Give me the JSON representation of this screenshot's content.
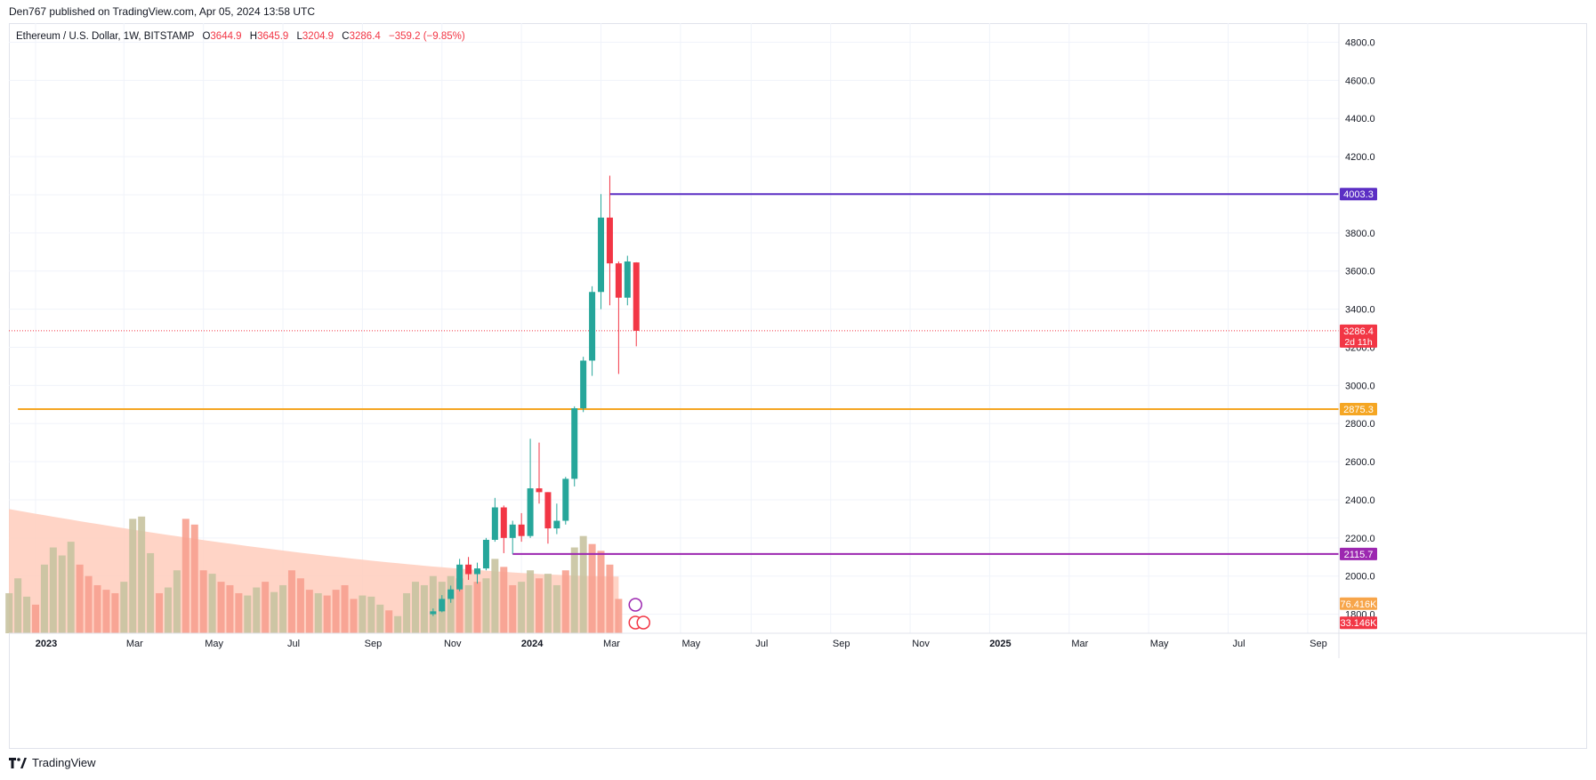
{
  "header": {
    "published": "Den767 published on TradingView.com, Apr 05, 2024 13:58 UTC"
  },
  "legend": {
    "symbol": "Ethereum / U.S. Dollar, 1W, BITSTAMP",
    "o_label": "O",
    "o_value": "3644.9",
    "h_label": "H",
    "h_value": "3645.9",
    "l_label": "L",
    "l_value": "3204.9",
    "c_label": "C",
    "c_value": "3286.4",
    "change": "−359.2 (−9.85%)"
  },
  "footer": {
    "brand": "TradingView"
  },
  "colors": {
    "up": "#26a69a",
    "down": "#f23645",
    "support": "#ff9800",
    "resistance": "#7e22ce",
    "grid": "#f0f3fa",
    "volume_ma": "#ffccbc",
    "volume_up": "#c8c3a0",
    "volume_down": "#f7a08f"
  },
  "chart_data": {
    "type": "candlestick",
    "y_axis": {
      "min": 1800,
      "max": 4800,
      "ticks": [
        "4800.0",
        "4600.0",
        "4400.0",
        "4200.0",
        "4000.0",
        "3800.0",
        "3600.0",
        "3400.0",
        "3200.0",
        "3000.0",
        "2800.0",
        "2600.0",
        "2400.0",
        "2200.0",
        "2000.0",
        "1800.0"
      ]
    },
    "x_axis_labels": [
      {
        "label": "2023",
        "week": 0,
        "bold": true
      },
      {
        "label": "Mar",
        "week": 10
      },
      {
        "label": "May",
        "week": 19
      },
      {
        "label": "Jul",
        "week": 28
      },
      {
        "label": "Sep",
        "week": 37
      },
      {
        "label": "Nov",
        "week": 46
      },
      {
        "label": "2024",
        "week": 55,
        "bold": true
      },
      {
        "label": "Mar",
        "week": 64
      },
      {
        "label": "May",
        "week": 73
      },
      {
        "label": "Jul",
        "week": 81
      },
      {
        "label": "Sep",
        "week": 90
      },
      {
        "label": "Nov",
        "week": 99
      },
      {
        "label": "2025",
        "week": 108,
        "bold": true
      },
      {
        "label": "Mar",
        "week": 117
      },
      {
        "label": "May",
        "week": 126
      },
      {
        "label": "Jul",
        "week": 135
      },
      {
        "label": "Sep",
        "week": 144
      }
    ],
    "candles_start_week": 45,
    "candles": [
      {
        "o": 1800,
        "h": 1830,
        "l": 1790,
        "c": 1815
      },
      {
        "o": 1815,
        "h": 1900,
        "l": 1810,
        "c": 1880
      },
      {
        "o": 1880,
        "h": 1950,
        "l": 1860,
        "c": 1930
      },
      {
        "o": 1930,
        "h": 2090,
        "l": 1920,
        "c": 2060
      },
      {
        "o": 2060,
        "h": 2100,
        "l": 1980,
        "c": 2010
      },
      {
        "o": 2010,
        "h": 2070,
        "l": 1960,
        "c": 2040
      },
      {
        "o": 2040,
        "h": 2200,
        "l": 2030,
        "c": 2190
      },
      {
        "o": 2190,
        "h": 2410,
        "l": 2180,
        "c": 2360
      },
      {
        "o": 2360,
        "h": 2370,
        "l": 2120,
        "c": 2200
      },
      {
        "o": 2200,
        "h": 2290,
        "l": 2115.7,
        "c": 2270
      },
      {
        "o": 2270,
        "h": 2330,
        "l": 2180,
        "c": 2210
      },
      {
        "o": 2210,
        "h": 2720,
        "l": 2200,
        "c": 2460
      },
      {
        "o": 2460,
        "h": 2700,
        "l": 2380,
        "c": 2440
      },
      {
        "o": 2440,
        "h": 2440,
        "l": 2170,
        "c": 2250
      },
      {
        "o": 2250,
        "h": 2380,
        "l": 2220,
        "c": 2290
      },
      {
        "o": 2290,
        "h": 2520,
        "l": 2270,
        "c": 2510
      },
      {
        "o": 2510,
        "h": 2890,
        "l": 2470,
        "c": 2880
      },
      {
        "o": 2880,
        "h": 3150,
        "l": 2860,
        "c": 3130
      },
      {
        "o": 3130,
        "h": 3520,
        "l": 3050,
        "c": 3490
      },
      {
        "o": 3490,
        "h": 4003.3,
        "l": 3400,
        "c": 3880
      },
      {
        "o": 3880,
        "h": 4100,
        "l": 3420,
        "c": 3640
      },
      {
        "o": 3640,
        "h": 3650,
        "l": 3060,
        "c": 3460
      },
      {
        "o": 3460,
        "h": 3680,
        "l": 3420,
        "c": 3650
      },
      {
        "o": 3644.9,
        "h": 3645.9,
        "l": 3204.9,
        "c": 3286.4
      }
    ],
    "volume": {
      "base_price": 1800,
      "max_height_price": 2300,
      "bars": [
        [
          0.35,
          0
        ],
        [
          0.48,
          0
        ],
        [
          0.32,
          0
        ],
        [
          0.25,
          1
        ],
        [
          0.6,
          0
        ],
        [
          0.75,
          0
        ],
        [
          0.68,
          0
        ],
        [
          0.8,
          0
        ],
        [
          0.6,
          1
        ],
        [
          0.5,
          1
        ],
        [
          0.42,
          1
        ],
        [
          0.38,
          1
        ],
        [
          0.35,
          1
        ],
        [
          0.45,
          0
        ],
        [
          1.0,
          0
        ],
        [
          1.02,
          0
        ],
        [
          0.7,
          0
        ],
        [
          0.35,
          1
        ],
        [
          0.4,
          0
        ],
        [
          0.55,
          0
        ],
        [
          1.0,
          1
        ],
        [
          0.95,
          1
        ],
        [
          0.55,
          1
        ],
        [
          0.52,
          0
        ],
        [
          0.45,
          1
        ],
        [
          0.42,
          1
        ],
        [
          0.35,
          1
        ],
        [
          0.33,
          0
        ],
        [
          0.4,
          0
        ],
        [
          0.45,
          1
        ],
        [
          0.36,
          0
        ],
        [
          0.42,
          0
        ],
        [
          0.55,
          1
        ],
        [
          0.48,
          1
        ],
        [
          0.38,
          1
        ],
        [
          0.35,
          0
        ],
        [
          0.33,
          1
        ],
        [
          0.38,
          1
        ],
        [
          0.42,
          1
        ],
        [
          0.3,
          1
        ],
        [
          0.33,
          0
        ],
        [
          0.32,
          0
        ],
        [
          0.25,
          0
        ],
        [
          0.2,
          1
        ],
        [
          0.15,
          0
        ],
        [
          0.35,
          0
        ],
        [
          0.45,
          0
        ],
        [
          0.42,
          0
        ],
        [
          0.5,
          0
        ],
        [
          0.45,
          0
        ],
        [
          0.5,
          0
        ],
        [
          0.48,
          1
        ],
        [
          0.42,
          0
        ],
        [
          0.45,
          1
        ],
        [
          0.48,
          0
        ],
        [
          0.65,
          0
        ],
        [
          0.58,
          1
        ],
        [
          0.42,
          1
        ],
        [
          0.45,
          0
        ],
        [
          0.55,
          0
        ],
        [
          0.48,
          1
        ],
        [
          0.52,
          0
        ],
        [
          0.42,
          0
        ],
        [
          0.55,
          1
        ],
        [
          0.75,
          0
        ],
        [
          0.85,
          0
        ],
        [
          0.78,
          1
        ],
        [
          0.72,
          1
        ],
        [
          0.6,
          1
        ],
        [
          0.3,
          1
        ]
      ],
      "ma_start": 0.92,
      "ma_end": 0.42
    },
    "levels": [
      {
        "price": 4003.3,
        "label": "4003.3",
        "color": "#5b2ec4",
        "start_week": 65
      },
      {
        "price": 2875.3,
        "label": "2875.3",
        "color": "#f5a623",
        "start_week": -2
      },
      {
        "price": 2115.7,
        "label": "2115.7",
        "color": "#9c27b0",
        "start_week": 54
      }
    ],
    "last_price": {
      "price": 3286.4,
      "label": "3286.4",
      "countdown": "2d 11h",
      "color": "#f23645"
    },
    "volume_labels": [
      {
        "label": "76.416K",
        "color": "#f7a54a",
        "price": 1855
      },
      {
        "label": "33.146K",
        "color": "#f23645",
        "price": 1755
      }
    ]
  }
}
